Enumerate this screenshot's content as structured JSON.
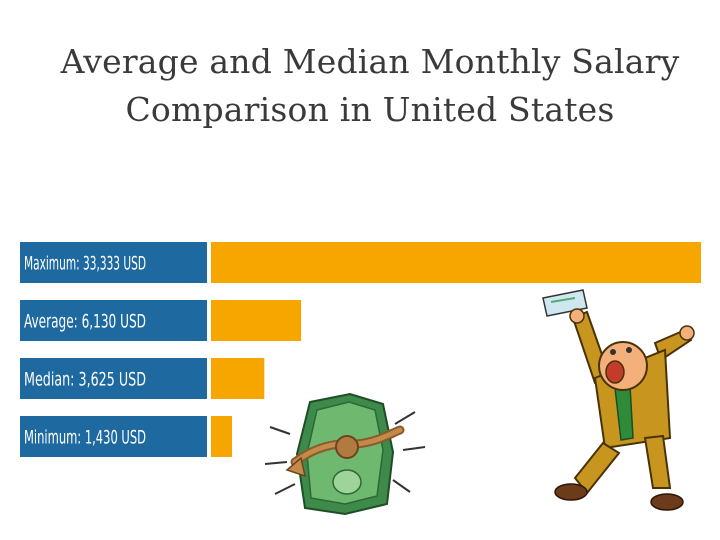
{
  "chart_data": {
    "type": "bar",
    "orientation": "horizontal",
    "title": "Average and Median Monthly Salary Comparison in United States",
    "title_lines": [
      "Average and Median Monthly Salary",
      "Comparison in United States"
    ],
    "categories": [
      "Maximum",
      "Average",
      "Median",
      "Minimum"
    ],
    "labels": [
      "Maximum: 33,333 USD",
      "Average: 6,130 USD",
      "Median: 3,625 USD",
      "Minimum: 1,430 USD"
    ],
    "values": [
      33333,
      6130,
      3625,
      1430
    ],
    "unit": "USD",
    "xlim": [
      0,
      33333
    ],
    "grid": false,
    "legend": "none",
    "colors": {
      "label_box": "#1e6aa0",
      "bar": "#f7a600"
    }
  },
  "illustrations": [
    "tied-money-bag-illustration",
    "happy-man-with-check-illustration"
  ]
}
